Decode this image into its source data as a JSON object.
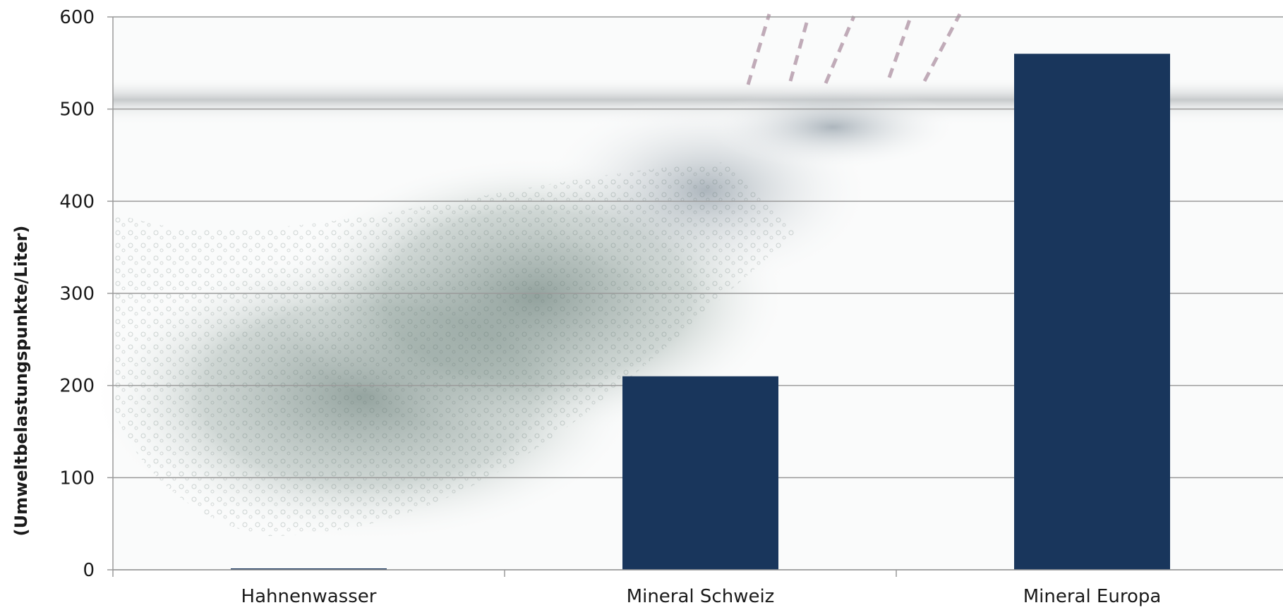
{
  "chart_data": {
    "type": "bar",
    "title": "",
    "xlabel": "",
    "ylabel": "(Umweltbelastungspunkte/Liter)",
    "categories": [
      "Hahnenwasser",
      "Mineral Schweiz",
      "Mineral Europa"
    ],
    "values": [
      1,
      210,
      560
    ],
    "ylim": [
      0,
      600
    ],
    "yticks": [
      0,
      100,
      200,
      300,
      400,
      500,
      600
    ],
    "grid": true,
    "legend": "none",
    "bar_color": "#19365c",
    "grid_color": "#9a9a9a",
    "background": "water-splash-photo"
  }
}
